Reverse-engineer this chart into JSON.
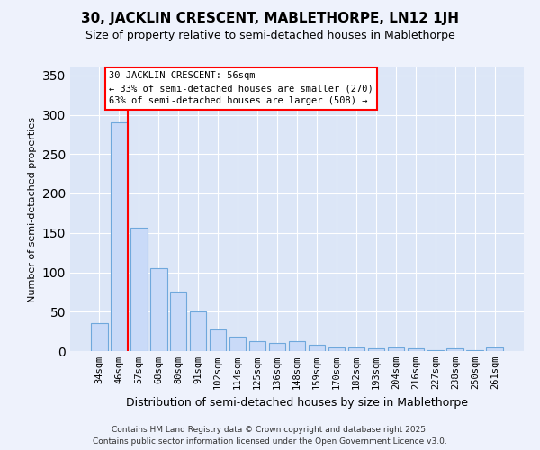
{
  "title": "30, JACKLIN CRESCENT, MABLETHORPE, LN12 1JH",
  "subtitle": "Size of property relative to semi-detached houses in Mablethorpe",
  "xlabel": "Distribution of semi-detached houses by size in Mablethorpe",
  "ylabel": "Number of semi-detached properties",
  "categories": [
    "34sqm",
    "46sqm",
    "57sqm",
    "68sqm",
    "80sqm",
    "91sqm",
    "102sqm",
    "114sqm",
    "125sqm",
    "136sqm",
    "148sqm",
    "159sqm",
    "170sqm",
    "182sqm",
    "193sqm",
    "204sqm",
    "216sqm",
    "227sqm",
    "238sqm",
    "250sqm",
    "261sqm"
  ],
  "values": [
    35,
    290,
    157,
    105,
    75,
    50,
    27,
    18,
    13,
    10,
    13,
    8,
    5,
    5,
    3,
    5,
    3,
    1,
    3,
    1,
    5
  ],
  "bar_color": "#c9daf8",
  "bar_edge_color": "#6fa8dc",
  "vline_color": "red",
  "annotation_title": "30 JACKLIN CRESCENT: 56sqm",
  "annotation_line1": "← 33% of semi-detached houses are smaller (270)",
  "annotation_line2": "63% of semi-detached houses are larger (508) →",
  "ylim": [
    0,
    360
  ],
  "yticks": [
    0,
    50,
    100,
    150,
    200,
    250,
    300,
    350
  ],
  "footer1": "Contains HM Land Registry data © Crown copyright and database right 2025.",
  "footer2": "Contains public sector information licensed under the Open Government Licence v3.0.",
  "bg_color": "#eef2fc",
  "plot_bg_color": "#dce6f7"
}
